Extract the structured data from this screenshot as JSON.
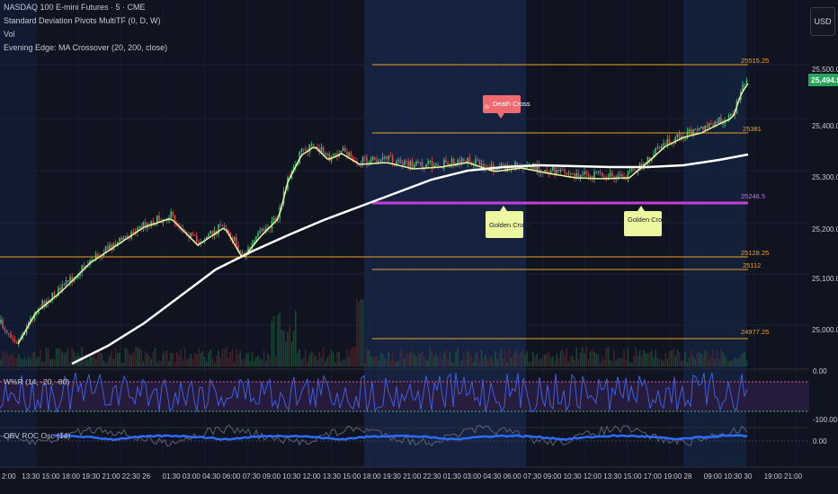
{
  "legend": {
    "symbol": "NASDAQ 100 E-mini Futures · 5 · CME",
    "indicator1": "Standard Deviation Pivots MultiTF (0, D, W)",
    "indicator2": "Vol",
    "indicator3": "Evening Edge: MA Crossover (20, 200, close)"
  },
  "currency_label": "USD",
  "last_price": "25,494.50",
  "price_axis": [
    "25,500.00",
    "25,400.00",
    "25,300.00",
    "25,200.00",
    "25,100.00",
    "25,000.00"
  ],
  "pivots": [
    "25515.25",
    "25381",
    "25246.5",
    "25128.25",
    "25112",
    "24977.25"
  ],
  "signals": {
    "death_cross": "Death Cross",
    "death_prefix": "0r",
    "golden_cross_1": "Golden Cross",
    "golden_cross_2": "Golden Cross"
  },
  "wpr": {
    "label": "W%R (14, -20, -80)",
    "axis": [
      "0.00",
      "-100.00"
    ]
  },
  "obv": {
    "label": "OBV ROC Osc (14)",
    "axis": [
      "0.00"
    ]
  },
  "time_axis": [
    "2:00",
    "13:30",
    "15:00",
    "18:00",
    "19:30",
    "21:00",
    "22:30",
    "26",
    "01:30",
    "03:00",
    "04:30",
    "06:00",
    "07:30",
    "09:00",
    "10:30",
    "12:00",
    "13:30",
    "15:00",
    "18:00",
    "19:30",
    "21:00",
    "22:30",
    "01:30",
    "03:00",
    "04:30",
    "06:00",
    "07:30",
    "09:00",
    "10:30",
    "12:00",
    "13:30",
    "15:00",
    "17:00",
    "19:00",
    "28",
    "09:00",
    "10:30",
    "30",
    "19:00",
    "21:00"
  ],
  "colors": {
    "bg": "#0f1420",
    "session": "#152341",
    "pivot": "#f0a01e",
    "pivot_mid": "#c33fd6",
    "up": "#3fbf76",
    "down": "#e0454f",
    "ma_fast": "#e9f7a0",
    "ma_slow": "#ffffff",
    "wpr_line": "#3d5fe0",
    "obv_line": "#2f6bff",
    "price_tag": "#26a65b"
  }
}
